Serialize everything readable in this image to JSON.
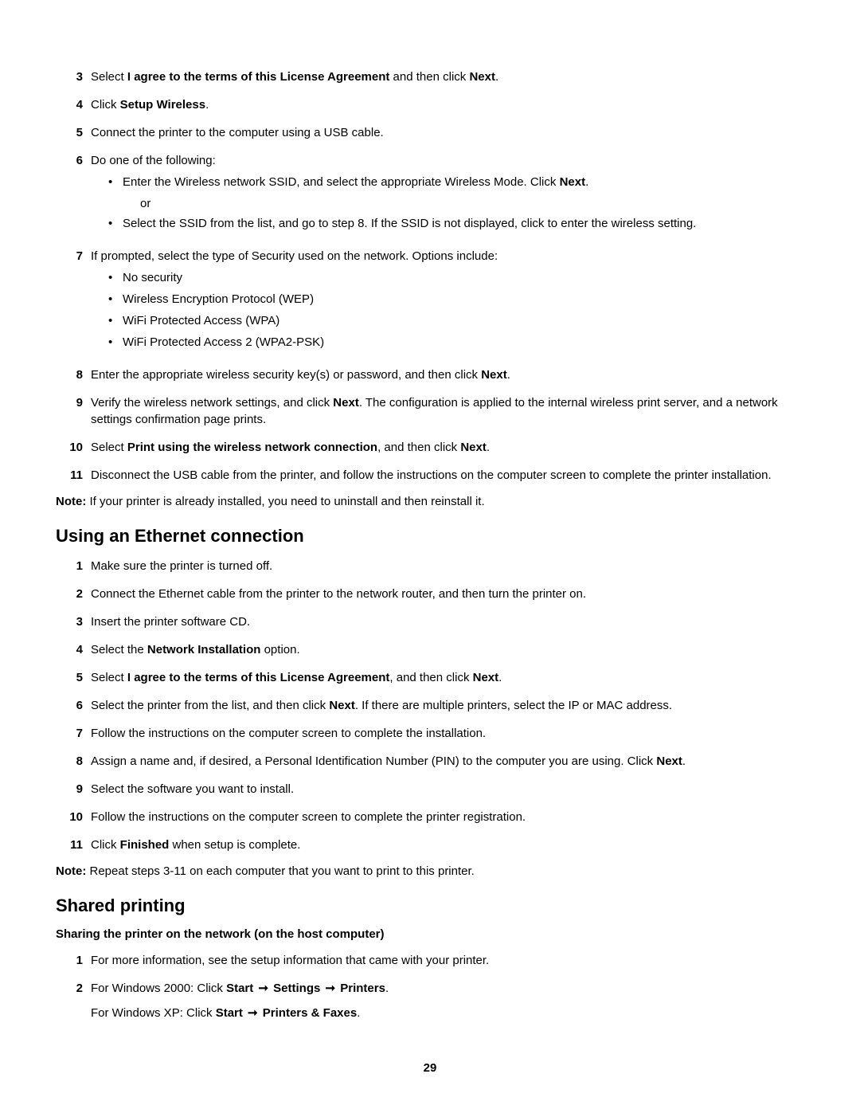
{
  "page_number": "29",
  "arrow": "➞",
  "s1": {
    "items": [
      {
        "n": "3",
        "runs": [
          [
            "",
            "Select "
          ],
          [
            "b",
            "I agree to the terms of this License Agreement"
          ],
          [
            "",
            " and then click "
          ],
          [
            "b",
            "Next"
          ],
          [
            "",
            "."
          ]
        ]
      },
      {
        "n": "4",
        "runs": [
          [
            "",
            "Click "
          ],
          [
            "b",
            "Setup Wireless"
          ],
          [
            "",
            "."
          ]
        ]
      },
      {
        "n": "5",
        "runs": [
          [
            "",
            "Connect the printer to the computer using a USB cable."
          ]
        ]
      },
      {
        "n": "6",
        "runs": [
          [
            "",
            "Do one of the following:"
          ]
        ],
        "sub": [
          {
            "runs": [
              [
                "",
                "Enter the Wireless network SSID, and select the appropriate Wireless Mode. Click "
              ],
              [
                "b",
                "Next"
              ],
              [
                "",
                "."
              ]
            ],
            "after_or": true
          },
          {
            "runs": [
              [
                "",
                "Select the SSID from the list, and go to step 8. If the SSID is not displayed, click to enter the wireless setting."
              ]
            ]
          }
        ]
      },
      {
        "n": "7",
        "runs": [
          [
            "",
            "If prompted, select the type of Security used on the network. Options include:"
          ]
        ],
        "sub": [
          {
            "runs": [
              [
                "",
                "No security"
              ]
            ]
          },
          {
            "runs": [
              [
                "",
                "Wireless Encryption Protocol (WEP)"
              ]
            ]
          },
          {
            "runs": [
              [
                "",
                "WiFi Protected Access (WPA)"
              ]
            ]
          },
          {
            "runs": [
              [
                "",
                "WiFi Protected Access 2 (WPA2-PSK)"
              ]
            ]
          }
        ]
      },
      {
        "n": "8",
        "runs": [
          [
            "",
            "Enter the appropriate wireless security key(s) or password, and then click "
          ],
          [
            "b",
            "Next"
          ],
          [
            "",
            "."
          ]
        ]
      },
      {
        "n": "9",
        "runs": [
          [
            "",
            "Verify the wireless network settings, and click "
          ],
          [
            "b",
            "Next"
          ],
          [
            "",
            ". The configuration is applied to the internal wireless print server, and a network settings confirmation page prints."
          ]
        ]
      },
      {
        "n": "10",
        "runs": [
          [
            "",
            "Select "
          ],
          [
            "b",
            "Print using the wireless network connection"
          ],
          [
            "",
            ", and then click "
          ],
          [
            "b",
            "Next"
          ],
          [
            "",
            "."
          ]
        ]
      },
      {
        "n": "11",
        "runs": [
          [
            "",
            "Disconnect the USB cable from the printer, and follow the instructions on the computer screen to complete the printer installation."
          ]
        ]
      }
    ],
    "note": [
      [
        "b",
        "Note:"
      ],
      [
        "",
        " If your printer is already installed, you need to uninstall and then reinstall it."
      ]
    ]
  },
  "s2": {
    "heading": "Using an Ethernet connection",
    "items": [
      {
        "n": "1",
        "runs": [
          [
            "",
            "Make sure the printer is turned off."
          ]
        ]
      },
      {
        "n": "2",
        "runs": [
          [
            "",
            "Connect the Ethernet cable from the printer to the network router, and then turn the printer on."
          ]
        ]
      },
      {
        "n": "3",
        "runs": [
          [
            "",
            "Insert the printer software CD."
          ]
        ]
      },
      {
        "n": "4",
        "runs": [
          [
            "",
            "Select the "
          ],
          [
            "b",
            "Network Installation"
          ],
          [
            "",
            " option."
          ]
        ]
      },
      {
        "n": "5",
        "runs": [
          [
            "",
            "Select "
          ],
          [
            "b",
            "I agree to the terms of this License Agreement"
          ],
          [
            "",
            ", and then click "
          ],
          [
            "b",
            "Next"
          ],
          [
            "",
            "."
          ]
        ]
      },
      {
        "n": "6",
        "runs": [
          [
            "",
            "Select the printer from the list, and then click "
          ],
          [
            "b",
            "Next"
          ],
          [
            "",
            ". If there are multiple printers, select the IP or MAC address."
          ]
        ]
      },
      {
        "n": "7",
        "runs": [
          [
            "",
            "Follow the instructions on the computer screen to complete the installation."
          ]
        ]
      },
      {
        "n": "8",
        "runs": [
          [
            "",
            "Assign a name and, if desired, a Personal Identification Number (PIN) to the computer you are using. Click "
          ],
          [
            "b",
            "Next"
          ],
          [
            "",
            "."
          ]
        ]
      },
      {
        "n": "9",
        "runs": [
          [
            "",
            "Select the software you want to install."
          ]
        ]
      },
      {
        "n": "10",
        "runs": [
          [
            "",
            "Follow the instructions on the computer screen to complete the printer registration."
          ]
        ]
      },
      {
        "n": "11",
        "runs": [
          [
            "",
            "Click "
          ],
          [
            "b",
            "Finished"
          ],
          [
            "",
            " when setup is complete."
          ]
        ]
      }
    ],
    "note": [
      [
        "b",
        "Note:"
      ],
      [
        "",
        " Repeat steps 3-11 on each computer that you want to print to this printer."
      ]
    ]
  },
  "s3": {
    "heading": "Shared printing",
    "subhead": "Sharing the printer on the network (on the host computer)",
    "items": [
      {
        "n": "1",
        "runs": [
          [
            "",
            "For more information, see the setup information that came with your printer."
          ]
        ]
      },
      {
        "n": "2",
        "paras": [
          [
            [
              "",
              "For Windows 2000: Click "
            ],
            [
              "b",
              "Start"
            ],
            [
              "arrow",
              ""
            ],
            [
              "b",
              "Settings"
            ],
            [
              "arrow",
              ""
            ],
            [
              "b",
              "Printers"
            ],
            [
              "",
              "."
            ]
          ],
          [
            [
              "",
              "For Windows XP: Click "
            ],
            [
              "b",
              "Start"
            ],
            [
              "arrow",
              ""
            ],
            [
              "b",
              "Printers & Faxes"
            ],
            [
              "",
              "."
            ]
          ]
        ]
      }
    ]
  },
  "or_label": "or"
}
